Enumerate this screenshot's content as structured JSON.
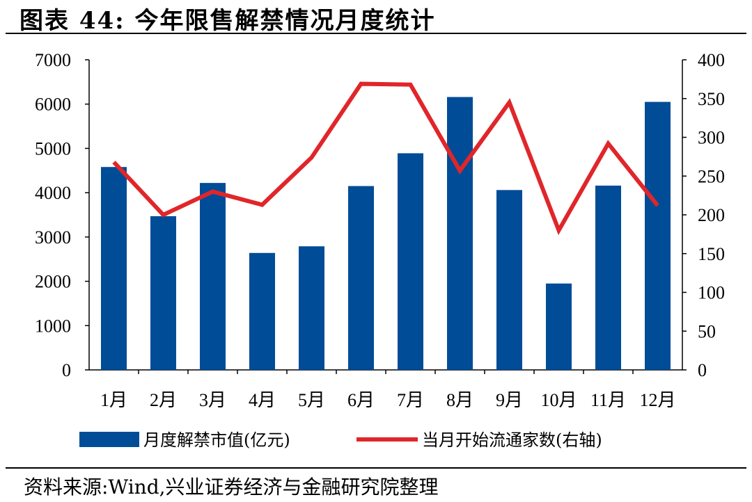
{
  "header": {
    "title": "图表 44:  今年限售解禁情况月度统计"
  },
  "footer": {
    "source": "资料来源:Wind,兴业证券经济与金融研究院整理"
  },
  "chart_data": {
    "type": "bar",
    "categories": [
      "1月",
      "2月",
      "3月",
      "4月",
      "5月",
      "6月",
      "7月",
      "8月",
      "9月",
      "10月",
      "11月",
      "12月"
    ],
    "series": [
      {
        "name": "月度解禁市值(亿元)",
        "type": "bar",
        "axis": "left",
        "color": "#004C97",
        "values": [
          4580,
          3470,
          4220,
          2640,
          2790,
          4150,
          4890,
          6160,
          4060,
          1950,
          4160,
          6050
        ]
      },
      {
        "name": "当月开始流通家数(右轴)",
        "type": "line",
        "axis": "right",
        "color": "#E0262A",
        "values": [
          268,
          200,
          230,
          213,
          274,
          369,
          368,
          257,
          345,
          180,
          292,
          212
        ]
      }
    ],
    "left_axis": {
      "ylim": [
        0,
        7000
      ],
      "ticks": [
        "0",
        "1000",
        "2000",
        "3000",
        "4000",
        "5000",
        "6000",
        "7000"
      ]
    },
    "right_axis": {
      "ylim": [
        0,
        400
      ],
      "ticks": [
        "0",
        "50",
        "100",
        "150",
        "200",
        "250",
        "300",
        "350",
        "400"
      ]
    },
    "legend": {
      "position": "bottom"
    },
    "grid": false
  }
}
